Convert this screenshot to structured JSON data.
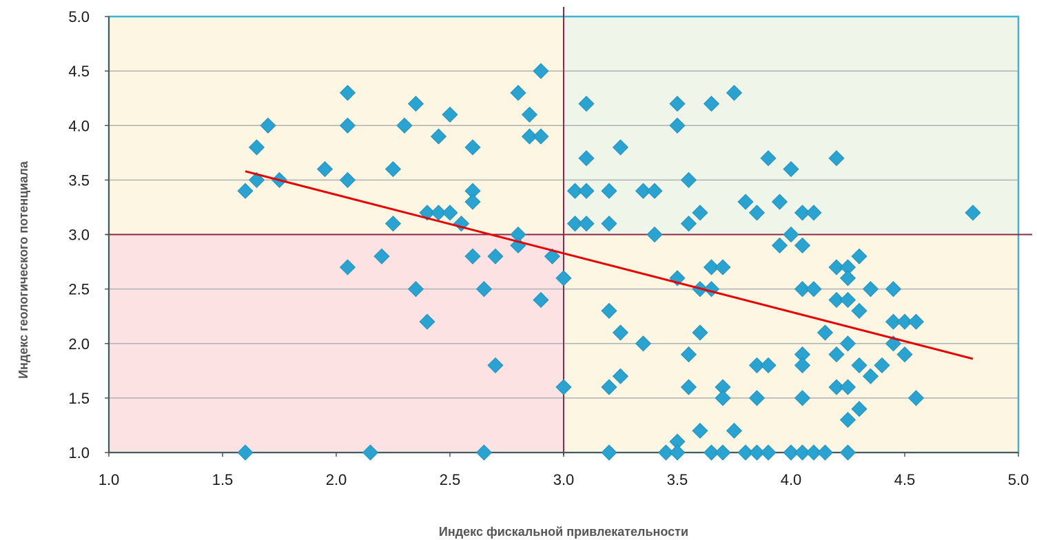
{
  "chart_data": {
    "type": "scatter",
    "title": "",
    "xlabel": "Индекс фискальной привлекательности",
    "ylabel": "Индекс геологического потенциала",
    "xlim": [
      1.0,
      5.0
    ],
    "ylim": [
      1.0,
      5.0
    ],
    "x_ticks": [
      "1.0",
      "1.5",
      "2.0",
      "2.5",
      "3.0",
      "3.5",
      "4.0",
      "4.5",
      "5.0"
    ],
    "y_ticks": [
      "1.0",
      "1.5",
      "2.0",
      "2.5",
      "3.0",
      "3.5",
      "4.0",
      "4.5",
      "5.0"
    ],
    "grid": "horizontal",
    "quadrant_divider": {
      "x": 3.0,
      "y": 3.0
    },
    "quadrants": [
      {
        "name": "top-left",
        "x": [
          1.0,
          3.0
        ],
        "y": [
          3.0,
          5.0
        ],
        "color": "#fdf6e3"
      },
      {
        "name": "top-right",
        "x": [
          3.0,
          5.0
        ],
        "y": [
          3.0,
          5.0
        ],
        "color": "#f0f5ea"
      },
      {
        "name": "bottom-left",
        "x": [
          1.0,
          3.0
        ],
        "y": [
          1.0,
          3.0
        ],
        "color": "#fde2e4"
      },
      {
        "name": "bottom-right",
        "x": [
          3.0,
          5.0
        ],
        "y": [
          1.0,
          3.0
        ],
        "color": "#fdf6e3"
      }
    ],
    "colors": {
      "points": "#2ba3d0",
      "trendline": "#e60000",
      "divider": "#8b2a4a",
      "frame": "#3cb4d8",
      "grid": "#b0b0b0"
    },
    "trendline": {
      "x": [
        1.6,
        4.8
      ],
      "y": [
        3.58,
        1.86
      ]
    },
    "points": [
      [
        1.6,
        1.0
      ],
      [
        1.6,
        3.4
      ],
      [
        1.65,
        3.5
      ],
      [
        1.65,
        3.8
      ],
      [
        1.7,
        4.0
      ],
      [
        1.75,
        3.5
      ],
      [
        1.95,
        3.6
      ],
      [
        2.05,
        4.3
      ],
      [
        2.05,
        4.0
      ],
      [
        2.05,
        3.5
      ],
      [
        2.05,
        2.7
      ],
      [
        2.15,
        1.0
      ],
      [
        2.2,
        2.8
      ],
      [
        2.25,
        3.6
      ],
      [
        2.25,
        3.1
      ],
      [
        2.3,
        4.0
      ],
      [
        2.35,
        4.2
      ],
      [
        2.35,
        2.5
      ],
      [
        2.4,
        3.2
      ],
      [
        2.4,
        2.2
      ],
      [
        2.45,
        3.9
      ],
      [
        2.45,
        3.2
      ],
      [
        2.5,
        4.1
      ],
      [
        2.5,
        3.2
      ],
      [
        2.55,
        3.1
      ],
      [
        2.6,
        3.8
      ],
      [
        2.6,
        3.4
      ],
      [
        2.6,
        3.3
      ],
      [
        2.6,
        2.8
      ],
      [
        2.65,
        2.5
      ],
      [
        2.65,
        1.0
      ],
      [
        2.7,
        2.8
      ],
      [
        2.7,
        1.8
      ],
      [
        2.8,
        4.3
      ],
      [
        2.8,
        3.0
      ],
      [
        2.8,
        2.9
      ],
      [
        2.85,
        4.1
      ],
      [
        2.85,
        3.9
      ],
      [
        2.9,
        4.5
      ],
      [
        2.9,
        3.9
      ],
      [
        2.9,
        2.4
      ],
      [
        2.95,
        2.8
      ],
      [
        3.0,
        2.6
      ],
      [
        3.0,
        1.6
      ],
      [
        3.05,
        3.4
      ],
      [
        3.05,
        3.1
      ],
      [
        3.1,
        4.2
      ],
      [
        3.1,
        3.7
      ],
      [
        3.1,
        3.4
      ],
      [
        3.1,
        3.1
      ],
      [
        3.2,
        3.4
      ],
      [
        3.2,
        3.1
      ],
      [
        3.2,
        2.3
      ],
      [
        3.2,
        1.6
      ],
      [
        3.2,
        1.0
      ],
      [
        3.25,
        3.8
      ],
      [
        3.25,
        2.1
      ],
      [
        3.25,
        1.7
      ],
      [
        3.35,
        3.4
      ],
      [
        3.35,
        2.0
      ],
      [
        3.4,
        3.4
      ],
      [
        3.4,
        3.0
      ],
      [
        3.45,
        1.0
      ],
      [
        3.5,
        4.2
      ],
      [
        3.5,
        4.0
      ],
      [
        3.5,
        2.6
      ],
      [
        3.5,
        1.1
      ],
      [
        3.5,
        1.0
      ],
      [
        3.55,
        3.5
      ],
      [
        3.55,
        3.1
      ],
      [
        3.55,
        1.9
      ],
      [
        3.55,
        1.6
      ],
      [
        3.6,
        3.2
      ],
      [
        3.6,
        2.5
      ],
      [
        3.6,
        2.1
      ],
      [
        3.6,
        1.2
      ],
      [
        3.65,
        4.2
      ],
      [
        3.65,
        2.7
      ],
      [
        3.65,
        2.5
      ],
      [
        3.65,
        1.0
      ],
      [
        3.7,
        2.7
      ],
      [
        3.7,
        1.6
      ],
      [
        3.7,
        1.5
      ],
      [
        3.7,
        1.0
      ],
      [
        3.75,
        4.3
      ],
      [
        3.75,
        1.2
      ],
      [
        3.8,
        3.3
      ],
      [
        3.8,
        1.0
      ],
      [
        3.85,
        3.2
      ],
      [
        3.85,
        1.8
      ],
      [
        3.85,
        1.5
      ],
      [
        3.85,
        1.0
      ],
      [
        3.9,
        3.7
      ],
      [
        3.9,
        1.8
      ],
      [
        3.9,
        1.0
      ],
      [
        3.95,
        3.3
      ],
      [
        3.95,
        2.9
      ],
      [
        4.0,
        3.6
      ],
      [
        4.0,
        3.0
      ],
      [
        4.0,
        1.0
      ],
      [
        4.05,
        3.2
      ],
      [
        4.05,
        2.9
      ],
      [
        4.05,
        2.5
      ],
      [
        4.05,
        1.9
      ],
      [
        4.05,
        1.8
      ],
      [
        4.05,
        1.5
      ],
      [
        4.05,
        1.0
      ],
      [
        4.1,
        3.2
      ],
      [
        4.1,
        2.5
      ],
      [
        4.1,
        1.0
      ],
      [
        4.15,
        2.1
      ],
      [
        4.15,
        1.0
      ],
      [
        4.2,
        3.7
      ],
      [
        4.2,
        2.7
      ],
      [
        4.2,
        2.4
      ],
      [
        4.2,
        1.9
      ],
      [
        4.2,
        1.6
      ],
      [
        4.25,
        2.7
      ],
      [
        4.25,
        2.6
      ],
      [
        4.25,
        2.4
      ],
      [
        4.25,
        2.0
      ],
      [
        4.25,
        1.6
      ],
      [
        4.25,
        1.3
      ],
      [
        4.25,
        1.0
      ],
      [
        4.3,
        2.8
      ],
      [
        4.3,
        2.3
      ],
      [
        4.3,
        1.8
      ],
      [
        4.3,
        1.4
      ],
      [
        4.35,
        2.5
      ],
      [
        4.35,
        1.7
      ],
      [
        4.4,
        1.8
      ],
      [
        4.45,
        2.5
      ],
      [
        4.45,
        2.2
      ],
      [
        4.45,
        2.0
      ],
      [
        4.5,
        2.2
      ],
      [
        4.5,
        1.9
      ],
      [
        4.55,
        2.2
      ],
      [
        4.55,
        1.5
      ],
      [
        4.8,
        3.2
      ]
    ]
  }
}
